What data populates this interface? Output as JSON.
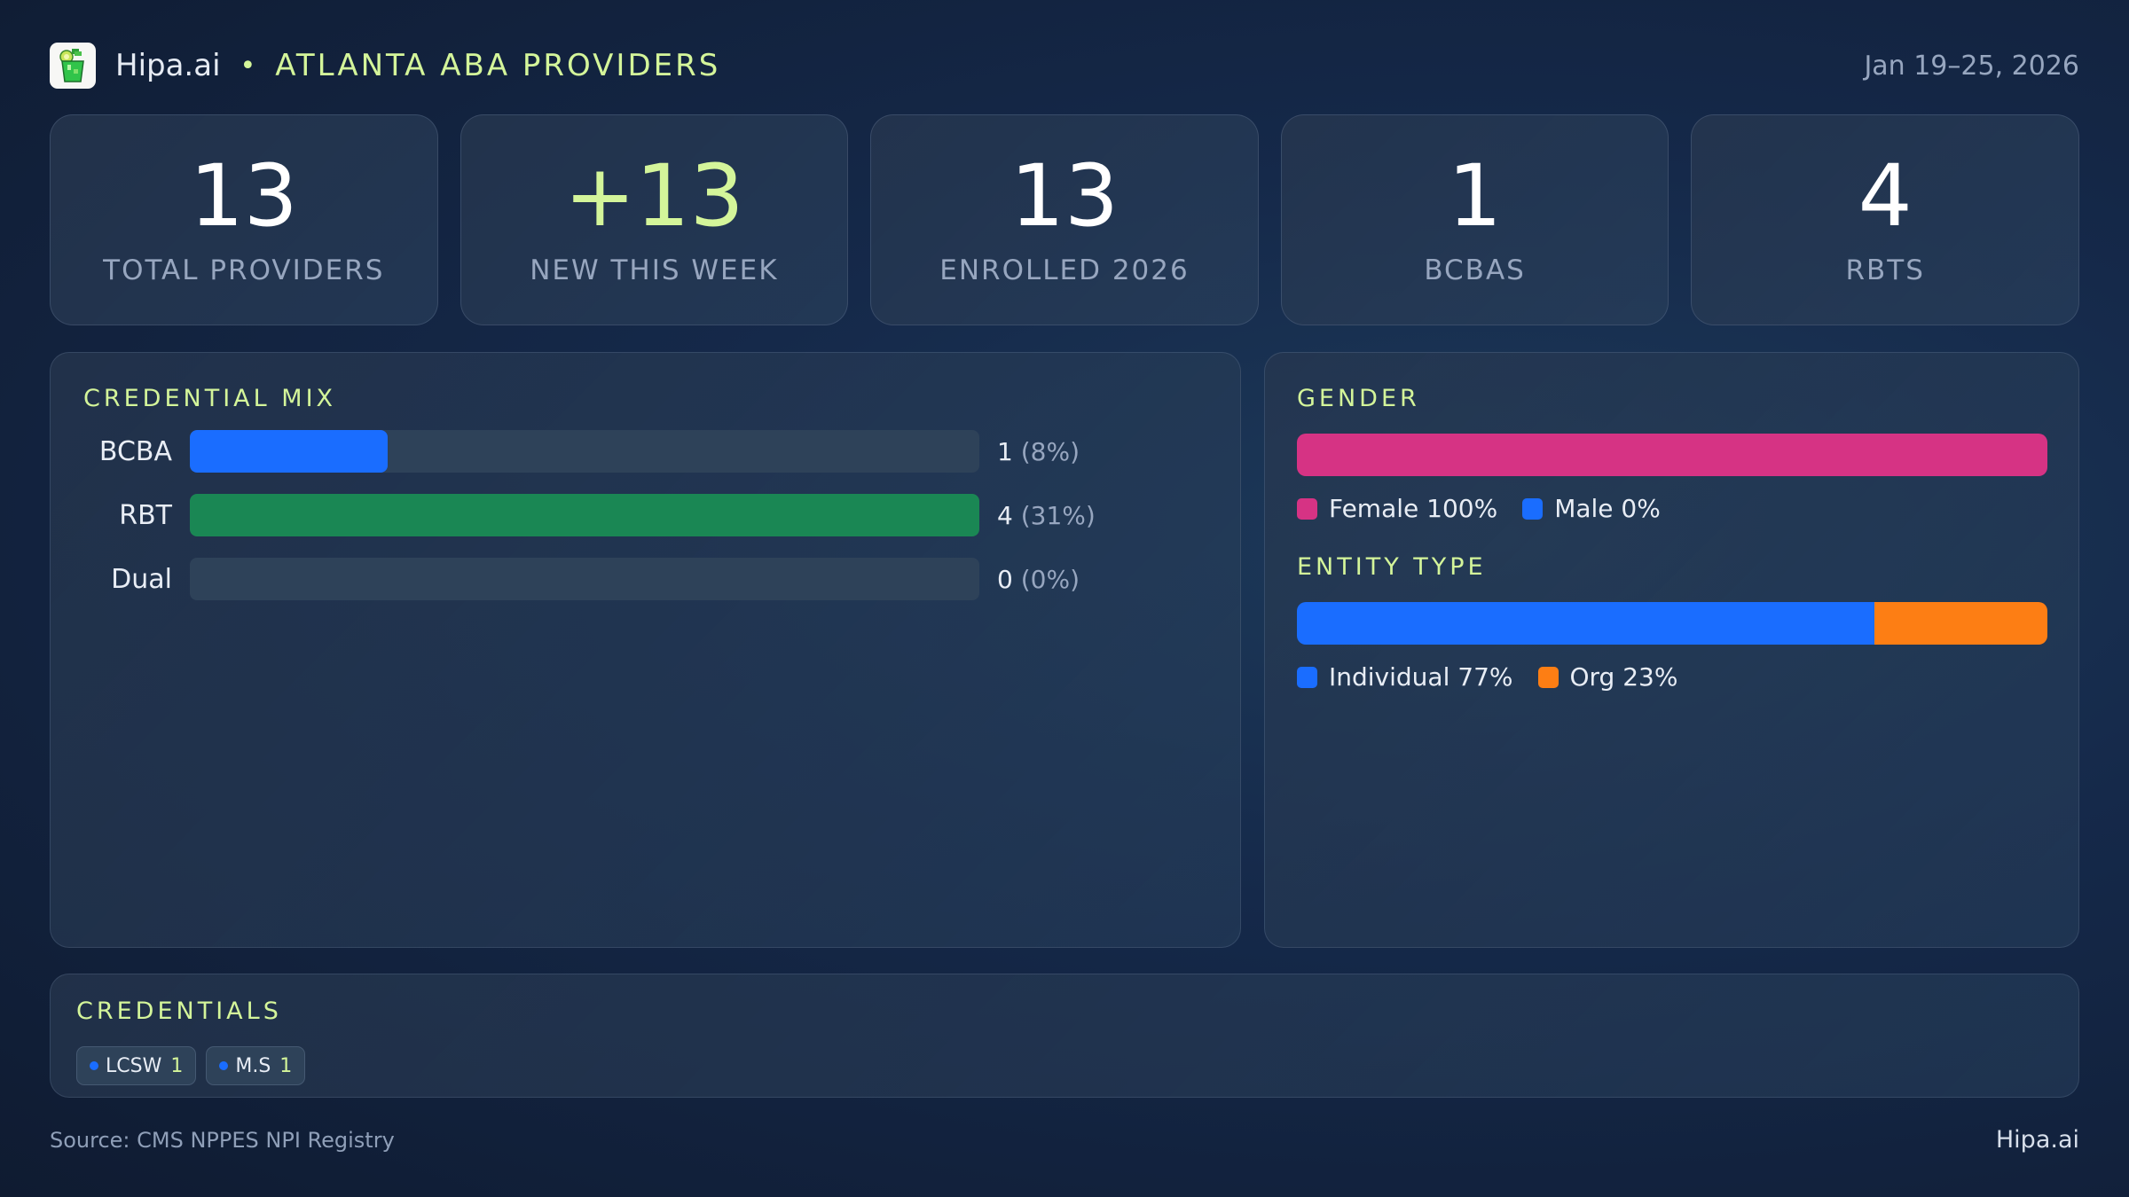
{
  "header": {
    "logo_icon": "mojito-glass-icon",
    "brand": "Hipa.ai",
    "separator": "•",
    "title": "ATLANTA ABA PROVIDERS",
    "date_range": "Jan 19–25, 2026"
  },
  "stats": [
    {
      "value": "13",
      "label": "TOTAL PROVIDERS"
    },
    {
      "value": "+13",
      "label": "NEW THIS WEEK",
      "accent": true
    },
    {
      "value": "13",
      "label": "ENROLLED 2026"
    },
    {
      "value": "1",
      "label": "BCBAS"
    },
    {
      "value": "4",
      "label": "RBTS"
    }
  ],
  "credential_mix": {
    "title": "CREDENTIAL MIX",
    "rows": [
      {
        "label": "BCBA",
        "count": "1",
        "pct": "(8%)",
        "fill_pct": 25,
        "color": "#1a6dff"
      },
      {
        "label": "RBT",
        "count": "4",
        "pct": "(31%)",
        "fill_pct": 100,
        "color": "#1a8754"
      },
      {
        "label": "Dual",
        "count": "0",
        "pct": "(0%)",
        "fill_pct": 0,
        "color": "#1a6dff"
      }
    ]
  },
  "gender": {
    "title": "GENDER",
    "segments": [
      {
        "label": "Female 100%",
        "pct": 100,
        "color": "#d63384"
      },
      {
        "label": "Male 0%",
        "pct": 0,
        "color": "#1a6dff"
      }
    ]
  },
  "entity_type": {
    "title": "ENTITY TYPE",
    "segments": [
      {
        "label": "Individual 77%",
        "pct": 77,
        "color": "#1a6dff"
      },
      {
        "label": "Org 23%",
        "pct": 23,
        "color": "#fd7e14"
      }
    ]
  },
  "credentials": {
    "title": "CREDENTIALS",
    "chips": [
      {
        "name": "LCSW",
        "count": "1"
      },
      {
        "name": "M.S",
        "count": "1"
      }
    ]
  },
  "footer": {
    "source": "Source: CMS NPPES NPI Registry",
    "brand": "Hipa.ai"
  },
  "colors": {
    "accent": "#d4f59a",
    "blue": "#1a6dff",
    "green": "#1a8754",
    "pink": "#d63384",
    "orange": "#fd7e14"
  },
  "chart_data": [
    {
      "type": "bar",
      "title": "CREDENTIAL MIX",
      "categories": [
        "BCBA",
        "RBT",
        "Dual"
      ],
      "values": [
        1,
        4,
        0
      ],
      "percent_labels": [
        "8%",
        "31%",
        "0%"
      ]
    },
    {
      "type": "bar",
      "title": "GENDER",
      "categories": [
        "Female",
        "Male"
      ],
      "values": [
        100,
        0
      ],
      "stacked": true
    },
    {
      "type": "bar",
      "title": "ENTITY TYPE",
      "categories": [
        "Individual",
        "Org"
      ],
      "values": [
        77,
        23
      ],
      "stacked": true
    }
  ]
}
